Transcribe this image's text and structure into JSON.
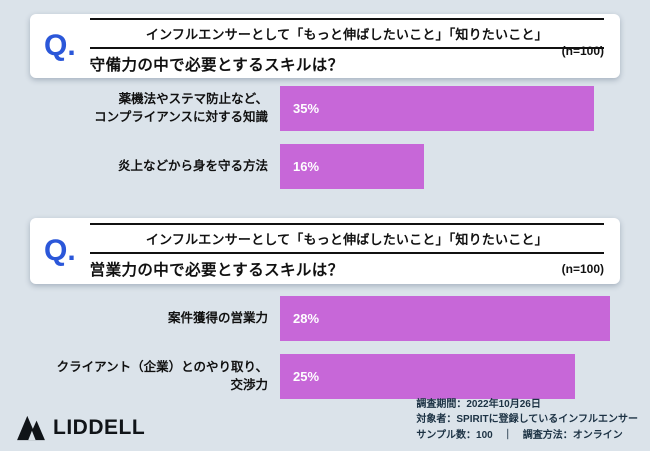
{
  "theme": {
    "background": "#dbe3ea",
    "card_bg": "#ffffff",
    "accent_blue": "#2b57d9",
    "bar_color": "#c767d8",
    "text_dark": "#111111",
    "footer_text": "#1c3244"
  },
  "chart_data": [
    {
      "type": "bar",
      "orientation": "horizontal",
      "q_prefix": "Q.",
      "title_line1": "インフルエンサーとして「もっと伸ばしたいこと」「知りたいこと」",
      "title_line2": "守備力の中で必要とするスキルは？",
      "sample_size_label": "(n=100)",
      "categories": [
        "薬機法やステマ防止など、\nコンプライアンスに対する知識",
        "炎上などから身を守る方法"
      ],
      "values": [
        35,
        16
      ],
      "value_labels": [
        "35%",
        "16%"
      ],
      "unit": "%",
      "xlim": [
        0,
        35
      ],
      "legend": "none",
      "grid": false
    },
    {
      "type": "bar",
      "orientation": "horizontal",
      "q_prefix": "Q.",
      "title_line1": "インフルエンサーとして「もっと伸ばしたいこと」「知りたいこと」",
      "title_line2": "営業力の中で必要とするスキルは？",
      "sample_size_label": "(n=100)",
      "categories": [
        "案件獲得の営業力",
        "クライアント（企業）とのやり取り、\n交渉力"
      ],
      "values": [
        28,
        25
      ],
      "value_labels": [
        "28%",
        "25%"
      ],
      "unit": "%",
      "xlim": [
        0,
        28
      ],
      "legend": "none",
      "grid": false
    }
  ],
  "footer": {
    "logo_text": "LIDDELL",
    "survey_period": "調査期間：2022年10月26日",
    "survey_target": "対象者：SPIRITに登録しているインフルエンサー",
    "survey_sample": "サンプル数：100　｜　調査方法：オンライン"
  }
}
